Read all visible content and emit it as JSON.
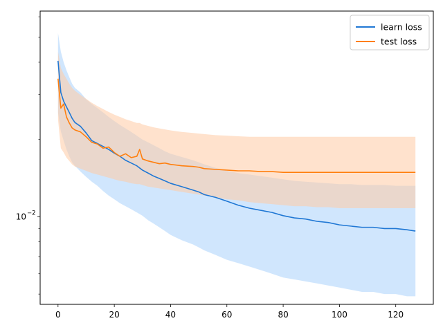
{
  "chart_data": {
    "type": "line",
    "title": "",
    "xlabel": "",
    "ylabel": "",
    "yscale": "log",
    "xlim": [
      -6.35,
      133.35
    ],
    "ylim": [
      0.00456,
      0.0633
    ],
    "xticks": [
      0,
      20,
      40,
      60,
      80,
      100,
      120
    ],
    "yticks": [
      {
        "value": 0.01,
        "label": "10",
        "exp": "−2"
      }
    ],
    "yminor_ticks": [
      0.005,
      0.006,
      0.007,
      0.008,
      0.009,
      0.02,
      0.03,
      0.04,
      0.05,
      0.06
    ],
    "grid": false,
    "legend": "top-right",
    "band_label": "",
    "series": [
      {
        "name": "learn loss",
        "color": "#1f77d4",
        "band_color": "#a9d1fb",
        "x": [
          0,
          1,
          2,
          3,
          4,
          5,
          6,
          8,
          10,
          12,
          14,
          16,
          18,
          20,
          22,
          24,
          26,
          28,
          30,
          32,
          34,
          36,
          38,
          40,
          44,
          48,
          50,
          52,
          56,
          60,
          64,
          68,
          72,
          76,
          80,
          84,
          88,
          92,
          96,
          100,
          104,
          108,
          112,
          116,
          120,
          124,
          127
        ],
        "y": [
          0.0405,
          0.0305,
          0.0282,
          0.0268,
          0.0255,
          0.0242,
          0.0233,
          0.0225,
          0.0212,
          0.0198,
          0.0193,
          0.0188,
          0.0183,
          0.0177,
          0.0172,
          0.0166,
          0.0162,
          0.0158,
          0.0152,
          0.0148,
          0.0144,
          0.0141,
          0.0138,
          0.0135,
          0.0131,
          0.0127,
          0.0125,
          0.0122,
          0.0119,
          0.0115,
          0.0111,
          0.0108,
          0.0106,
          0.0104,
          0.0101,
          0.0099,
          0.0098,
          0.0096,
          0.0095,
          0.0093,
          0.0092,
          0.0091,
          0.0091,
          0.009,
          0.009,
          0.0089,
          0.0088
        ],
        "lower": [
          0.0255,
          0.0215,
          0.0198,
          0.0183,
          0.0172,
          0.0163,
          0.0158,
          0.015,
          0.0143,
          0.0137,
          0.0132,
          0.0126,
          0.0121,
          0.0117,
          0.0113,
          0.011,
          0.0107,
          0.0104,
          0.0101,
          0.0097,
          0.0094,
          0.0091,
          0.0088,
          0.0085,
          0.0081,
          0.0078,
          0.0076,
          0.0074,
          0.0071,
          0.0068,
          0.0066,
          0.0064,
          0.0062,
          0.006,
          0.0058,
          0.0057,
          0.0056,
          0.0055,
          0.0054,
          0.0053,
          0.0052,
          0.0051,
          0.0051,
          0.005,
          0.005,
          0.0049,
          0.0049
        ],
        "upper": [
          0.052,
          0.044,
          0.04,
          0.0372,
          0.035,
          0.033,
          0.0318,
          0.0305,
          0.0287,
          0.0275,
          0.0265,
          0.0255,
          0.0245,
          0.0236,
          0.0228,
          0.0221,
          0.0214,
          0.0207,
          0.02,
          0.0195,
          0.019,
          0.0185,
          0.018,
          0.0176,
          0.0171,
          0.0166,
          0.0163,
          0.016,
          0.0155,
          0.0151,
          0.0148,
          0.0146,
          0.0144,
          0.0142,
          0.014,
          0.0138,
          0.0137,
          0.0136,
          0.0135,
          0.0134,
          0.0134,
          0.0133,
          0.0133,
          0.0133,
          0.0132,
          0.0132,
          0.0132
        ]
      },
      {
        "name": "test loss",
        "color": "#ff7f0e",
        "band_color": "#ffcba4",
        "x": [
          0,
          1,
          2,
          3,
          4,
          5,
          6,
          8,
          10,
          12,
          14,
          16,
          18,
          20,
          22,
          24,
          26,
          28,
          29,
          30,
          32,
          34,
          36,
          38,
          40,
          44,
          48,
          50,
          52,
          56,
          60,
          64,
          68,
          72,
          76,
          80,
          84,
          88,
          92,
          96,
          100,
          104,
          108,
          112,
          116,
          120,
          124,
          127
        ],
        "y": [
          0.0345,
          0.0265,
          0.0275,
          0.0245,
          0.0232,
          0.0222,
          0.0218,
          0.0214,
          0.0205,
          0.0195,
          0.0192,
          0.0185,
          0.0187,
          0.0178,
          0.0172,
          0.0176,
          0.017,
          0.0172,
          0.0183,
          0.0168,
          0.0165,
          0.0163,
          0.0161,
          0.0162,
          0.016,
          0.0158,
          0.0157,
          0.0156,
          0.0154,
          0.0153,
          0.0152,
          0.0151,
          0.0151,
          0.015,
          0.015,
          0.0149,
          0.0149,
          0.0149,
          0.0149,
          0.0149,
          0.0149,
          0.0149,
          0.0149,
          0.0149,
          0.0149,
          0.0149,
          0.0149,
          0.0149
        ],
        "lower": [
          0.024,
          0.0185,
          0.0178,
          0.017,
          0.0165,
          0.016,
          0.0157,
          0.0154,
          0.0151,
          0.0148,
          0.0146,
          0.0144,
          0.0142,
          0.014,
          0.0138,
          0.0137,
          0.0135,
          0.0134,
          0.0134,
          0.0133,
          0.0131,
          0.013,
          0.0129,
          0.0128,
          0.0127,
          0.0125,
          0.0123,
          0.0122,
          0.0121,
          0.0119,
          0.0117,
          0.0116,
          0.0114,
          0.0113,
          0.0112,
          0.0111,
          0.011,
          0.011,
          0.0109,
          0.0109,
          0.0108,
          0.0108,
          0.0108,
          0.0108,
          0.0108,
          0.0108,
          0.0108,
          0.0108
        ],
        "upper": [
          0.044,
          0.038,
          0.036,
          0.0345,
          0.033,
          0.0318,
          0.031,
          0.0298,
          0.0288,
          0.0278,
          0.027,
          0.0263,
          0.0256,
          0.025,
          0.0245,
          0.024,
          0.0236,
          0.0232,
          0.0232,
          0.0229,
          0.0226,
          0.0223,
          0.0221,
          0.0219,
          0.0217,
          0.0214,
          0.0212,
          0.0211,
          0.021,
          0.0208,
          0.0207,
          0.0206,
          0.0205,
          0.0205,
          0.0205,
          0.0205,
          0.0205,
          0.0205,
          0.0205,
          0.0205,
          0.0205,
          0.0205,
          0.0205,
          0.0205,
          0.0205,
          0.0205,
          0.0205,
          0.0205
        ]
      }
    ]
  }
}
